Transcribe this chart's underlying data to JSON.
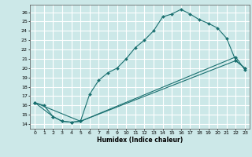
{
  "xlabel": "Humidex (Indice chaleur)",
  "bg_color": "#cce8e8",
  "grid_color": "#ffffff",
  "line_color": "#1a7070",
  "xlim": [
    -0.5,
    23.5
  ],
  "ylim": [
    13.5,
    26.8
  ],
  "xticks": [
    0,
    1,
    2,
    3,
    4,
    5,
    6,
    7,
    8,
    9,
    10,
    11,
    12,
    13,
    14,
    15,
    16,
    17,
    18,
    19,
    20,
    21,
    22,
    23
  ],
  "yticks": [
    14,
    15,
    16,
    17,
    18,
    19,
    20,
    21,
    22,
    23,
    24,
    25,
    26
  ],
  "line1_x": [
    0,
    1,
    2,
    3,
    4,
    5,
    6,
    7,
    8,
    9,
    10,
    11,
    12,
    13,
    14,
    15,
    16,
    17,
    18,
    19,
    20,
    21,
    22,
    23
  ],
  "line1_y": [
    16.3,
    16.0,
    14.8,
    14.3,
    14.2,
    14.3,
    17.2,
    18.7,
    19.5,
    20.0,
    21.0,
    22.2,
    23.0,
    24.0,
    25.5,
    25.8,
    26.3,
    25.8,
    25.2,
    24.8,
    24.3,
    23.2,
    20.8,
    20.0
  ],
  "line2_x": [
    0,
    2,
    3,
    4,
    5,
    22,
    23
  ],
  "line2_y": [
    16.3,
    14.8,
    14.3,
    14.2,
    14.3,
    20.8,
    20.0
  ],
  "line3_x": [
    0,
    5,
    22,
    23
  ],
  "line3_y": [
    16.3,
    14.3,
    21.2,
    19.8
  ]
}
